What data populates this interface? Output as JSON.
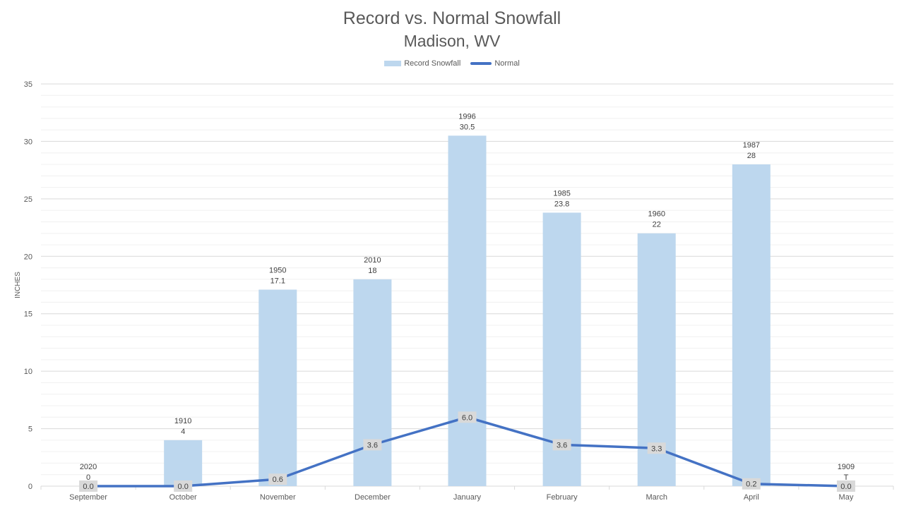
{
  "chart_data": {
    "type": "bar",
    "title": "Record vs. Normal Snowfall",
    "subtitle": "Madison, WV",
    "ylabel": "INCHES",
    "xlabel": "",
    "ylim": [
      0,
      35
    ],
    "yticks": [
      0,
      5,
      10,
      15,
      20,
      25,
      30,
      35
    ],
    "grid": true,
    "legend_position": "top",
    "categories": [
      "September",
      "October",
      "November",
      "December",
      "January",
      "February",
      "March",
      "April",
      "May"
    ],
    "series": [
      {
        "name": "Record Snowfall",
        "type": "bar",
        "color": "#bdd7ee",
        "values": [
          0,
          4,
          17.1,
          18,
          30.5,
          23.8,
          22,
          28,
          0
        ],
        "value_labels": [
          "0",
          "4",
          "17.1",
          "18",
          "30.5",
          "23.8",
          "22",
          "28",
          "T"
        ],
        "year_labels": [
          "2020",
          "1910",
          "1950",
          "2010",
          "1996",
          "1985",
          "1960",
          "1987",
          "1909"
        ]
      },
      {
        "name": "Normal",
        "type": "line",
        "color": "#4472c4",
        "values": [
          0.0,
          0.0,
          0.6,
          3.6,
          6.0,
          3.6,
          3.3,
          0.2,
          0.0
        ],
        "value_labels": [
          "0.0",
          "0.0",
          "0.6",
          "3.6",
          "6.0",
          "3.6",
          "3.3",
          "0.2",
          "0.0"
        ]
      }
    ]
  }
}
